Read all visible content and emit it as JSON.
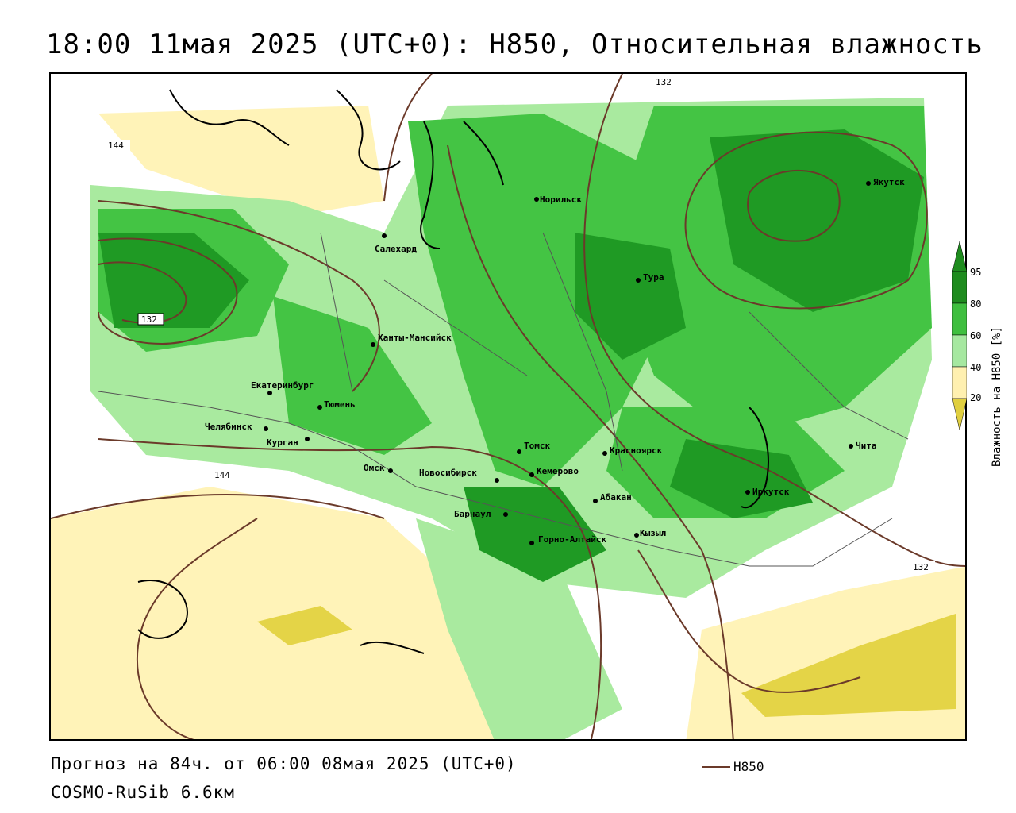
{
  "title": "18:00 11мая 2025 (UTC+0): H850, Относительная влажность",
  "forecast": "Прогноз на 84ч. от 06:00 08мая 2025 (UTC+0)",
  "model": "COSMO-RuSib 6.6км",
  "contour_legend": "H850",
  "colorbar": {
    "label": "Влажность на H850 [%]",
    "ticks": [
      "95",
      "80",
      "60",
      "40",
      "20"
    ],
    "colors": [
      "#1e8c1e",
      "#3fbf3f",
      "#a6e8a0",
      "#ffffff",
      "#fff0b0",
      "#e0cf40"
    ]
  },
  "contour_labels": [
    "144",
    "132",
    "132",
    "144",
    "132"
  ],
  "cities": [
    {
      "name": "Норильск"
    },
    {
      "name": "Якутск"
    },
    {
      "name": "Салехард"
    },
    {
      "name": "Тура"
    },
    {
      "name": "Ханты-Мансийск"
    },
    {
      "name": "Екатеринбург"
    },
    {
      "name": "Тюмень"
    },
    {
      "name": "Челябинск"
    },
    {
      "name": "Курган"
    },
    {
      "name": "Омск"
    },
    {
      "name": "Новосибирск"
    },
    {
      "name": "Томск"
    },
    {
      "name": "Кемерово"
    },
    {
      "name": "Красноярск"
    },
    {
      "name": "Абакан"
    },
    {
      "name": "Барнаул"
    },
    {
      "name": "Горно-Алтайск"
    },
    {
      "name": "Кызыл"
    },
    {
      "name": "Иркутск"
    },
    {
      "name": "Чита"
    }
  ]
}
